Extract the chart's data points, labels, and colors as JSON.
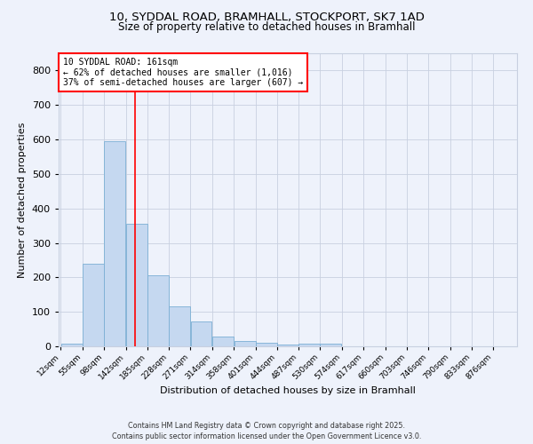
{
  "title_line1": "10, SYDDAL ROAD, BRAMHALL, STOCKPORT, SK7 1AD",
  "title_line2": "Size of property relative to detached houses in Bramhall",
  "xlabel": "Distribution of detached houses by size in Bramhall",
  "ylabel": "Number of detached properties",
  "bar_color": "#c5d8f0",
  "bar_edge_color": "#7bafd4",
  "bar_values": [
    8,
    240,
    595,
    355,
    205,
    117,
    72,
    28,
    15,
    10,
    6,
    8,
    8,
    0,
    0,
    0,
    0,
    0,
    0,
    0
  ],
  "bin_labels": [
    "12sqm",
    "55sqm",
    "98sqm",
    "142sqm",
    "185sqm",
    "228sqm",
    "271sqm",
    "314sqm",
    "358sqm",
    "401sqm",
    "444sqm",
    "487sqm",
    "530sqm",
    "574sqm",
    "617sqm",
    "660sqm",
    "703sqm",
    "746sqm",
    "790sqm",
    "833sqm",
    "876sqm"
  ],
  "bin_edges": [
    12,
    55,
    98,
    142,
    185,
    228,
    271,
    314,
    358,
    401,
    444,
    487,
    530,
    574,
    617,
    660,
    703,
    746,
    790,
    833,
    876
  ],
  "red_line_x": 161,
  "ylim": [
    0,
    850
  ],
  "yticks": [
    0,
    100,
    200,
    300,
    400,
    500,
    600,
    700,
    800
  ],
  "annotation_title": "10 SYDDAL ROAD: 161sqm",
  "annotation_line1": "← 62% of detached houses are smaller (1,016)",
  "annotation_line2": "37% of semi-detached houses are larger (607) →",
  "footer_line1": "Contains HM Land Registry data © Crown copyright and database right 2025.",
  "footer_line2": "Contains public sector information licensed under the Open Government Licence v3.0.",
  "background_color": "#eef2fb",
  "grid_color": "#c8d0e0"
}
